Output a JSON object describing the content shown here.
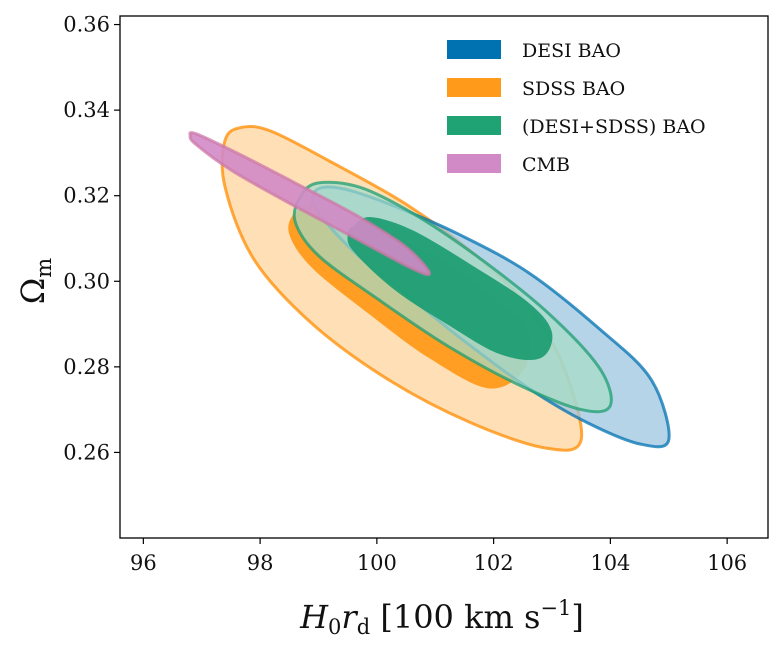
{
  "chart_data": {
    "type": "contour",
    "xlabel": "H_0 r_d [100 km s^-1]",
    "ylabel": "Ω_m",
    "xlim": [
      95.6,
      106.7
    ],
    "ylim": [
      0.24,
      0.362
    ],
    "xticks": [
      {
        "value": 96,
        "label": "96"
      },
      {
        "value": 98,
        "label": "98"
      },
      {
        "value": 100,
        "label": "100"
      },
      {
        "value": 102,
        "label": "102"
      },
      {
        "value": 104,
        "label": "104"
      },
      {
        "value": 106,
        "label": "106"
      }
    ],
    "yticks": [
      {
        "value": 0.26,
        "label": "0.26"
      },
      {
        "value": 0.28,
        "label": "0.28"
      },
      {
        "value": 0.3,
        "label": "0.30"
      },
      {
        "value": 0.32,
        "label": "0.32"
      },
      {
        "value": 0.34,
        "label": "0.34"
      },
      {
        "value": 0.36,
        "label": "0.36"
      }
    ],
    "grid": false,
    "legend_position": "top-right",
    "series": [
      {
        "name": "DESI BAO",
        "color": "#0072b2",
        "fill_outer": "#9ac4df",
        "fill_inner": "#2f8fc4",
        "outer_contour": [
          [
            99.1,
            0.322
          ],
          [
            99.6,
            0.321
          ],
          [
            100.4,
            0.317
          ],
          [
            101.4,
            0.311
          ],
          [
            102.6,
            0.302
          ],
          [
            103.8,
            0.289
          ],
          [
            104.7,
            0.277
          ],
          [
            105.0,
            0.263
          ],
          [
            104.5,
            0.262
          ],
          [
            103.6,
            0.267
          ],
          [
            102.6,
            0.275
          ],
          [
            101.5,
            0.286
          ],
          [
            100.5,
            0.297
          ],
          [
            99.6,
            0.307
          ],
          [
            99.0,
            0.316
          ],
          [
            98.9,
            0.32
          ]
        ],
        "inner_contour": []
      },
      {
        "name": "SDSS BAO",
        "color": "#ff8c00",
        "fill_outer": "#ffd39a",
        "fill_inner": "#ff9a1a",
        "outer_contour": [
          [
            97.4,
            0.333
          ],
          [
            97.7,
            0.336
          ],
          [
            98.2,
            0.335
          ],
          [
            99.2,
            0.328
          ],
          [
            100.5,
            0.318
          ],
          [
            101.7,
            0.306
          ],
          [
            102.6,
            0.294
          ],
          [
            103.2,
            0.28
          ],
          [
            103.5,
            0.263
          ],
          [
            102.9,
            0.261
          ],
          [
            101.6,
            0.267
          ],
          [
            100.2,
            0.277
          ],
          [
            98.9,
            0.29
          ],
          [
            97.9,
            0.305
          ],
          [
            97.4,
            0.322
          ]
        ],
        "inner_contour": [
          [
            98.6,
            0.316
          ],
          [
            99.0,
            0.318
          ],
          [
            100.0,
            0.313
          ],
          [
            101.2,
            0.304
          ],
          [
            102.1,
            0.295
          ],
          [
            102.6,
            0.288
          ],
          [
            102.5,
            0.279
          ],
          [
            101.9,
            0.275
          ],
          [
            100.9,
            0.282
          ],
          [
            99.9,
            0.292
          ],
          [
            98.9,
            0.303
          ],
          [
            98.5,
            0.311
          ]
        ]
      },
      {
        "name": "(DESI+SDSS) BAO",
        "color": "#1f9e73",
        "fill_outer": "#a5dcc6",
        "fill_inner": "#1f9e73",
        "outer_contour": [
          [
            98.7,
            0.32
          ],
          [
            99.0,
            0.323
          ],
          [
            99.7,
            0.322
          ],
          [
            100.6,
            0.316
          ],
          [
            101.7,
            0.306
          ],
          [
            102.9,
            0.293
          ],
          [
            103.8,
            0.28
          ],
          [
            104.0,
            0.271
          ],
          [
            103.5,
            0.27
          ],
          [
            102.4,
            0.276
          ],
          [
            101.2,
            0.285
          ],
          [
            100.0,
            0.296
          ],
          [
            99.0,
            0.306
          ],
          [
            98.6,
            0.314
          ]
        ],
        "inner_contour": [
          [
            99.6,
            0.313
          ],
          [
            99.9,
            0.315
          ],
          [
            100.6,
            0.312
          ],
          [
            101.6,
            0.304
          ],
          [
            102.6,
            0.295
          ],
          [
            103.0,
            0.288
          ],
          [
            102.8,
            0.282
          ],
          [
            102.1,
            0.283
          ],
          [
            101.2,
            0.29
          ],
          [
            100.3,
            0.298
          ],
          [
            99.6,
            0.307
          ],
          [
            99.5,
            0.311
          ]
        ]
      },
      {
        "name": "CMB",
        "color": "#cc79a7",
        "fill_outer": "#d18ac6",
        "fill_inner": "#c064b4",
        "outer_contour": [
          [
            96.8,
            0.334
          ],
          [
            96.9,
            0.3345
          ],
          [
            97.6,
            0.33
          ],
          [
            98.6,
            0.323
          ],
          [
            99.7,
            0.315
          ],
          [
            100.5,
            0.308
          ],
          [
            100.9,
            0.302
          ],
          [
            100.6,
            0.303
          ],
          [
            99.5,
            0.311
          ],
          [
            98.4,
            0.319
          ],
          [
            97.5,
            0.326
          ],
          [
            96.9,
            0.332
          ]
        ],
        "inner_contour": []
      }
    ]
  }
}
